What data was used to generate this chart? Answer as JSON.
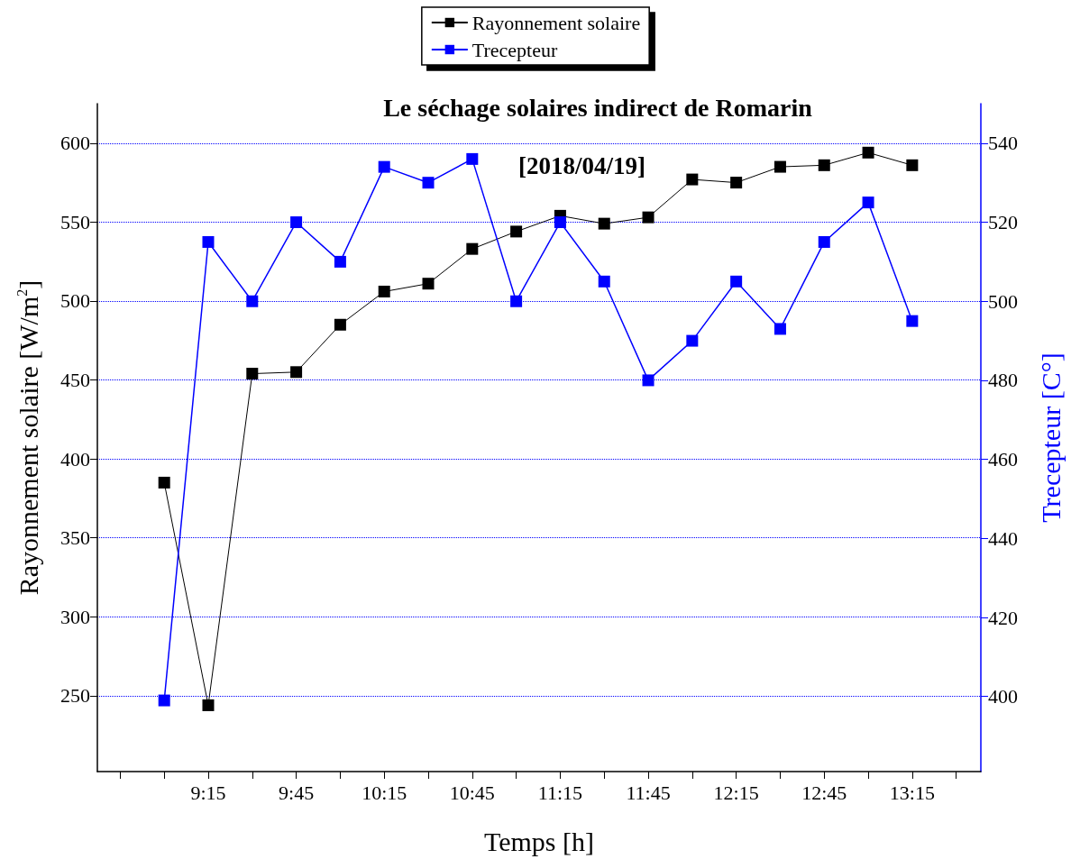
{
  "chart_data": {
    "type": "line",
    "title": "Le séchage solaires indirect de Romarin",
    "annotations": [
      "[2018/04/19]"
    ],
    "xlabel": "Temps [h]",
    "ylabel": "Rayonnement solaire [W/m$^{2}$]",
    "y2label": "Trecepteur [C°]",
    "x": [
      9,
      9.25,
      9.5,
      9.75,
      10,
      10.25,
      10.5,
      10.75,
      11,
      11.25,
      11.5,
      11.75,
      12,
      12.25,
      12.5,
      12.75,
      13,
      13.25
    ],
    "series": [
      {
        "name": "Rayonnement solaire",
        "color": "#000000",
        "values": [
          385,
          244,
          454,
          455,
          485,
          506,
          511,
          533,
          544,
          554,
          549,
          553,
          577,
          575,
          585,
          586,
          594,
          586
        ]
      },
      {
        "name": "Trecepteur",
        "color": "#0000ff",
        "axis": "y2",
        "values": [
          399,
          515,
          500,
          520,
          510,
          534,
          530,
          536,
          500,
          520,
          505,
          480,
          490,
          505,
          493,
          515,
          525,
          495
        ]
      }
    ],
    "xlim": [
      8.62,
      13.64
    ],
    "xticks": [
      {
        "value": 8.75,
        "label": null
      },
      {
        "value": 9,
        "label": null
      },
      {
        "value": 9.25,
        "label": "9:15"
      },
      {
        "value": 9.5,
        "label": null
      },
      {
        "value": 9.75,
        "label": "9:45"
      },
      {
        "value": 10,
        "label": null
      },
      {
        "value": 10.25,
        "label": "10:15"
      },
      {
        "value": 10.5,
        "label": null
      },
      {
        "value": 10.75,
        "label": "10:45"
      },
      {
        "value": 11,
        "label": null
      },
      {
        "value": 11.25,
        "label": "11:15"
      },
      {
        "value": 11.5,
        "label": null
      },
      {
        "value": 11.75,
        "label": "11:45"
      },
      {
        "value": 12,
        "label": null
      },
      {
        "value": 12.25,
        "label": "12:15"
      },
      {
        "value": 12.5,
        "label": null
      },
      {
        "value": 12.75,
        "label": "12:45"
      },
      {
        "value": 13,
        "label": null
      },
      {
        "value": 13.25,
        "label": "13:15"
      },
      {
        "value": 13.5,
        "label": null
      }
    ],
    "ylim": [
      202,
      625
    ],
    "yticks": [
      250,
      300,
      350,
      400,
      450,
      500,
      550,
      600
    ],
    "y2lim": [
      381,
      550
    ],
    "y2ticks": [
      400,
      420,
      440,
      460,
      480,
      500,
      520,
      540
    ],
    "grid": "y",
    "legend": "top",
    "marker": "square",
    "line_style": "solid"
  }
}
